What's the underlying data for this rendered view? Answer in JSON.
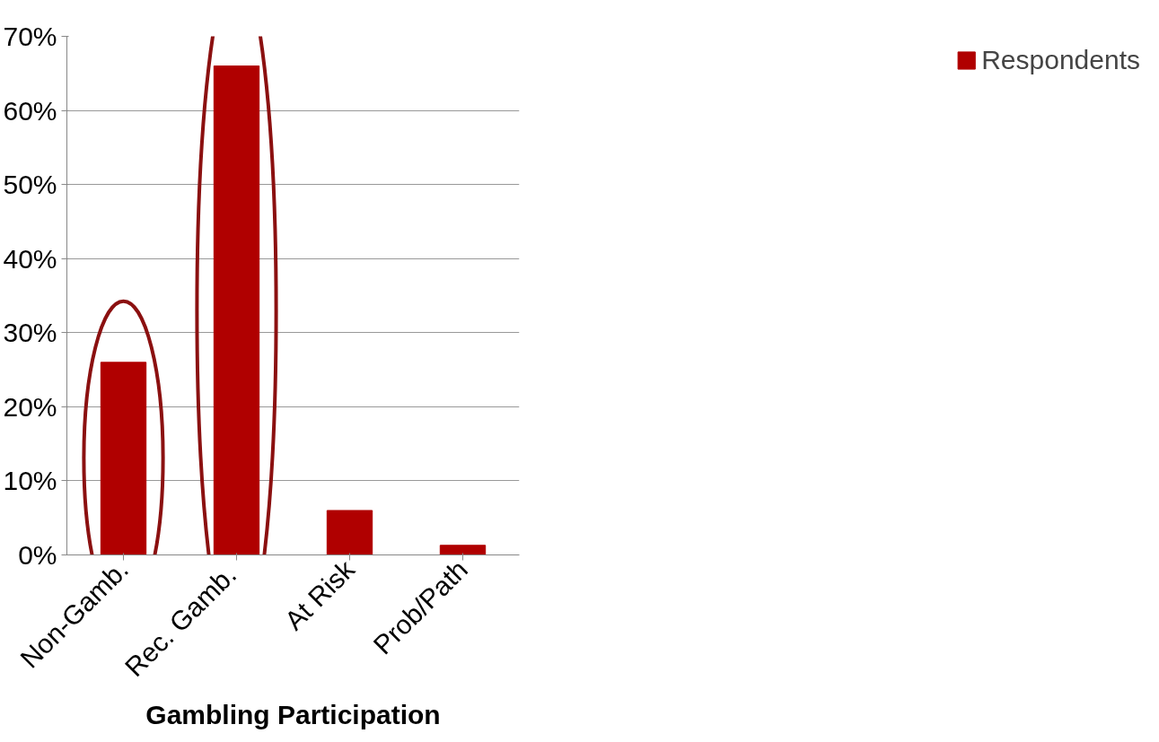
{
  "chart_data": {
    "type": "bar",
    "xlabel": "Gambling Participation",
    "categories": [
      "Non-Gamb.",
      "Rec.  Gamb.",
      "At Risk",
      "Prob/Path"
    ],
    "series": [
      {
        "name": "Respondents",
        "color": "#b00000",
        "values": [
          26,
          66,
          6,
          1.3
        ]
      }
    ],
    "ylim": [
      0,
      70
    ],
    "yticks": [
      {
        "value": 0,
        "label": "0%"
      },
      {
        "value": 10,
        "label": "10%"
      },
      {
        "value": 20,
        "label": "20%"
      },
      {
        "value": 30,
        "label": "30%"
      },
      {
        "value": 40,
        "label": "40%"
      },
      {
        "value": 50,
        "label": "50%"
      },
      {
        "value": 60,
        "label": "60%"
      },
      {
        "value": 70,
        "label": "70%"
      }
    ],
    "grid": "y",
    "legend": "right"
  }
}
